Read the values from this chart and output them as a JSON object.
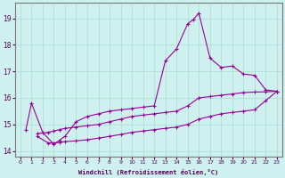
{
  "xlabel": "Windchill (Refroidissement éolien,°C)",
  "bg_color": "#cef0ee",
  "line_color": "#990099",
  "grid_color": "#aaddcc",
  "xlim": [
    -0.5,
    23.5
  ],
  "ylim": [
    13.8,
    19.6
  ],
  "yticks": [
    14,
    15,
    16,
    17,
    18,
    19
  ],
  "xticks": [
    0,
    1,
    2,
    3,
    4,
    5,
    6,
    7,
    8,
    9,
    10,
    11,
    12,
    13,
    14,
    15,
    16,
    17,
    18,
    19,
    20,
    21,
    22,
    23
  ],
  "series": [
    {
      "x": [
        0.5,
        1.0,
        2.0,
        3.0,
        3.5,
        4.0,
        5.0,
        6.0,
        7.0,
        8.0,
        9.0,
        10.0,
        11.0,
        12.0,
        13.0,
        14.0,
        15.0,
        15.5,
        16.0,
        17.0,
        18.0,
        19.0,
        20.0,
        21.0,
        22.0,
        23.0
      ],
      "y": [
        14.8,
        15.8,
        14.7,
        14.25,
        14.4,
        14.55,
        15.1,
        15.3,
        15.4,
        15.5,
        15.55,
        15.6,
        15.65,
        15.7,
        17.4,
        17.85,
        18.8,
        18.95,
        19.2,
        17.5,
        17.15,
        17.2,
        16.9,
        16.85,
        16.3,
        16.25
      ]
    },
    {
      "x": [
        1.5,
        2.5,
        3.0,
        3.5,
        4.0,
        5.0,
        6.0,
        7.0,
        8.0,
        9.0,
        10.0,
        11.0,
        12.0,
        13.0,
        14.0,
        15.0,
        16.0,
        17.0,
        18.0,
        19.0,
        20.0,
        21.0,
        22.0,
        23.0
      ],
      "y": [
        14.65,
        14.7,
        14.75,
        14.8,
        14.85,
        14.9,
        14.95,
        15.0,
        15.1,
        15.2,
        15.3,
        15.35,
        15.4,
        15.45,
        15.5,
        15.7,
        16.0,
        16.05,
        16.1,
        16.15,
        16.2,
        16.22,
        16.23,
        16.25
      ]
    },
    {
      "x": [
        1.5,
        2.5,
        3.0,
        3.5,
        4.0,
        5.0,
        6.0,
        7.0,
        8.0,
        9.0,
        10.0,
        11.0,
        12.0,
        13.0,
        14.0,
        15.0,
        16.0,
        17.0,
        18.0,
        19.0,
        20.0,
        21.0,
        22.0,
        23.0
      ],
      "y": [
        14.55,
        14.3,
        14.3,
        14.32,
        14.35,
        14.38,
        14.42,
        14.48,
        14.55,
        14.62,
        14.7,
        14.75,
        14.8,
        14.85,
        14.9,
        15.0,
        15.2,
        15.3,
        15.4,
        15.45,
        15.5,
        15.55,
        15.9,
        16.25
      ]
    }
  ]
}
